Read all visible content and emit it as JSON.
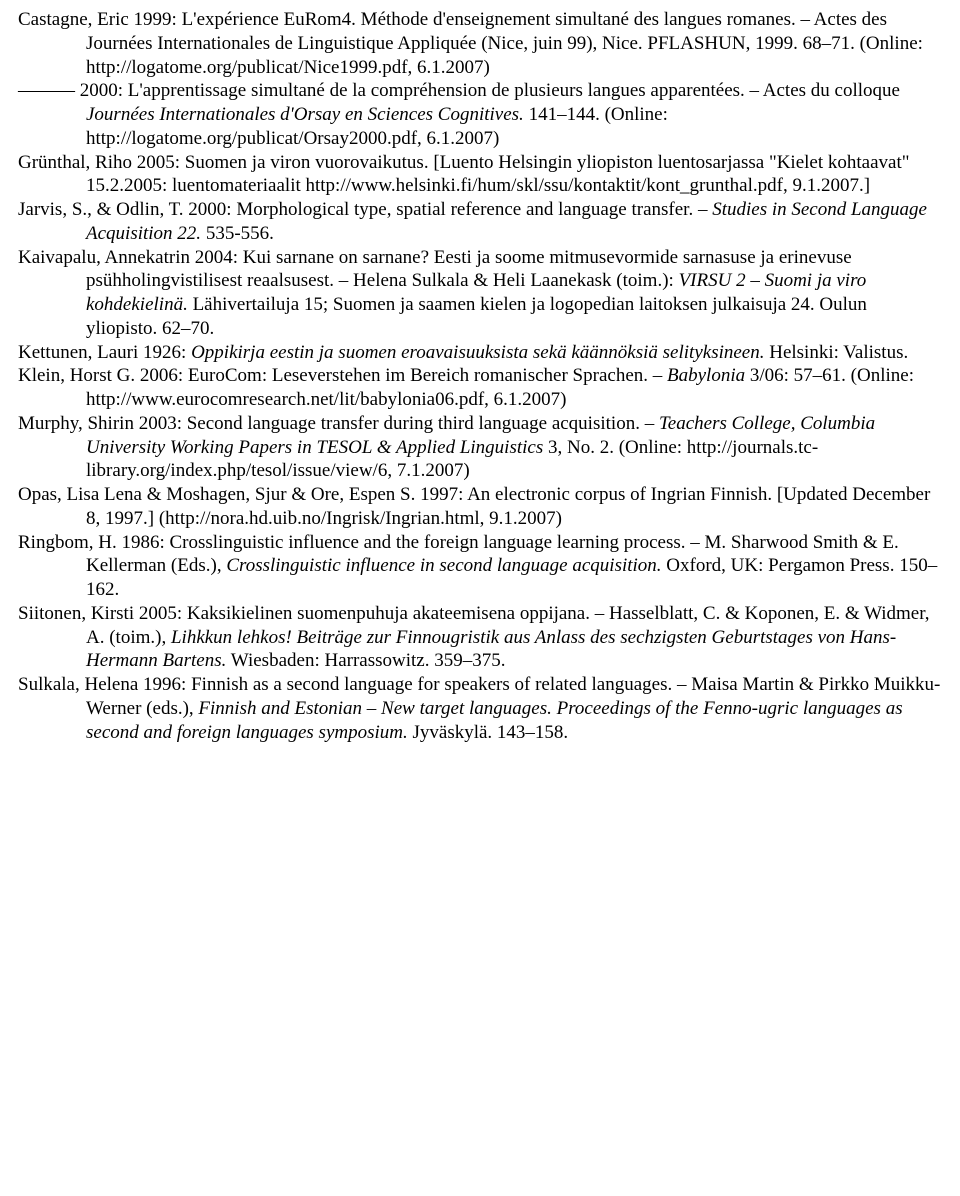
{
  "references": [
    {
      "html": "Castagne, Eric 1999: L'expérience EuRom4. Méthode d'enseignement simultané des langues romanes. – Actes des Journées Internationales de Linguistique Appliquée (Nice, juin 99), Nice. PFLASHUN, 1999. 68–71. (Online: http://logatome.org/publicat/Nice1999.pdf, 6.1.2007)"
    },
    {
      "html": "——— 2000: L'apprentissage simultané de la compréhension de plusieurs langues apparentées. – Actes du colloque <i>Journées Internationales d'Orsay en Sciences Cognitives.</i> 141–144. (Online: http://logatome.org/publicat/Orsay2000.pdf, 6.1.2007)"
    },
    {
      "html": "Grünthal, Riho 2005: Suomen ja viron vuorovaikutus. [Luento Helsingin yliopiston luentosarjassa \"Kielet kohtaavat\" 15.2.2005: luentomateriaalit http://www.helsinki.fi/hum/skl/ssu/kontaktit/kont_grunthal.pdf, 9.1.2007.]"
    },
    {
      "html": "Jarvis, S., & Odlin, T.  2000:  Morphological type, spatial reference and language transfer. – <i>Studies in Second Language Acquisition 22.</i> 535-556."
    },
    {
      "html": "Kaivapalu, Annekatrin 2004: Kui sarnane on sarnane? Eesti ja soome mitmusevormide sarnasuse ja erinevuse psühholingvistilisest reaalsusest. – Helena Sulkala & Heli Laanekask (toim.): <i>VIRSU 2 – Suomi ja viro kohdekielinä.</i> Lähivertailuja 15; Suomen ja saamen kielen ja logopedian laitoksen julkaisuja 24. Oulun yliopisto. 62–70."
    },
    {
      "html": "Kettunen, Lauri 1926: <i>Oppikirja eestin ja suomen eroavaisuuksista sekä käännöksiä selityksineen.</i> Helsinki: Valistus."
    },
    {
      "html": "Klein, Horst G. 2006: EuroCom: Leseverstehen im Bereich romanischer Sprachen. – <i>Babylonia</i> 3/06: 57–61. (Online: http://www.eurocomresearch.net/lit/babylonia06.pdf, 6.1.2007)"
    },
    {
      "html": "Murphy, Shirin 2003: Second language transfer during third language acquisition. – <i>Teachers College, Columbia University Working Papers in TESOL & Applied Linguistics</i> 3, No. 2. (Online: http://journals.tc-library.org/index.php/tesol/issue/view/6, 7.1.2007)"
    },
    {
      "html": "Opas, Lisa Lena & Moshagen, Sjur & Ore, Espen S. 1997: An electronic corpus of Ingrian Finnish. [Updated December 8, 1997.] (http://nora.hd.uib.no/Ingrisk/Ingrian.html, 9.1.2007)"
    },
    {
      "html": "Ringbom, H. 1986:  Crosslinguistic influence and the foreign language learning process. –  M. Sharwood Smith & E. Kellerman (Eds.), <i>Crosslinguistic influence in second language acquisition.</i>  Oxford, UK: Pergamon Press. 150–162."
    },
    {
      "html": "Siitonen, Kirsti 2005: Kaksikielinen suomenpuhuja akateemisena oppijana. – Hasselblatt, C. & Koponen, E. & Widmer, A. (toim.), <i>Lihkkun lehkos! Beiträge zur Finnougristik aus Anlass des sechzigsten Geburtstages von Hans-Hermann Bartens.</i> Wiesbaden: Harrassowitz. 359–375."
    },
    {
      "html": "Sulkala, Helena 1996: Finnish as a second language for speakers of related languages. – Maisa Martin & Pirkko Muikku-Werner (eds.), <i>Finnish and Estonian – New target languages. Proceedings of the Fenno-ugric languages as second and foreign languages symposium.</i> Jyväskylä. 143–158."
    }
  ]
}
